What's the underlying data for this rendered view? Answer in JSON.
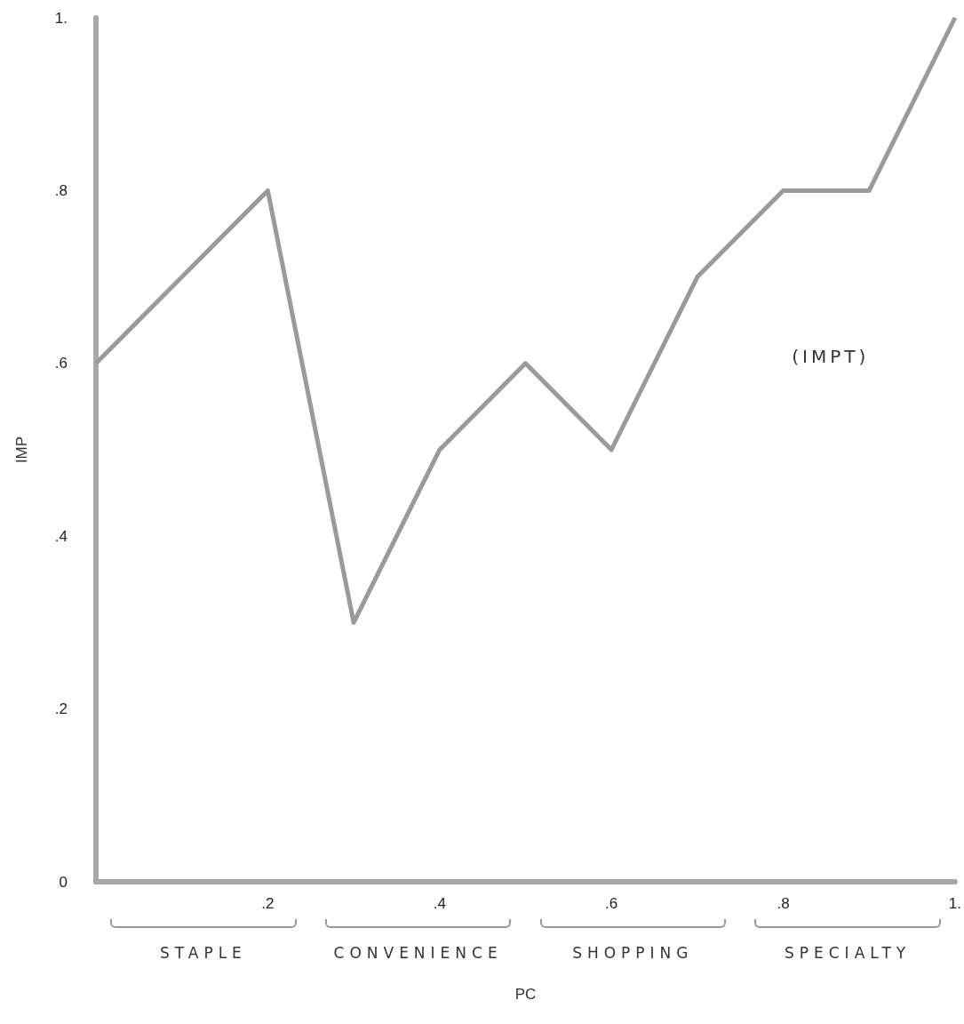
{
  "chart_data": {
    "type": "line",
    "xlabel": "PC",
    "ylabel": "IMP",
    "x": [
      0,
      0.2,
      0.3,
      0.4,
      0.5,
      0.6,
      0.7,
      0.8,
      0.9,
      1.0
    ],
    "series": [
      {
        "color": "#9a9a9a",
        "values": [
          0.6,
          0.8,
          0.3,
          0.5,
          0.6,
          0.5,
          0.7,
          0.8,
          0.8,
          1.0
        ]
      }
    ],
    "xlim": [
      0,
      1
    ],
    "ylim": [
      0,
      1
    ],
    "xticks": [
      {
        "value": 0,
        "label": null
      },
      {
        "value": 0.2,
        "label": ".2"
      },
      {
        "value": 0.4,
        "label": ".4"
      },
      {
        "value": 0.6,
        "label": ".6"
      },
      {
        "value": 0.8,
        "label": ".8"
      },
      {
        "value": 1,
        "label": "1."
      }
    ],
    "yticks": [
      0,
      {
        "value": 0.2,
        "label": ".2"
      },
      {
        "value": 0.4,
        "label": ".4"
      },
      {
        "value": 0.6,
        "label": ".6"
      },
      {
        "value": 0.8,
        "label": ".8"
      },
      {
        "value": 1,
        "label": "1."
      }
    ],
    "annotations": [
      "(IMPT)",
      "STAPLE",
      "CONVENIENCE",
      "SHOPPING",
      "SPECIALTY"
    ],
    "grid": false,
    "marker": "none",
    "line_style": "solid"
  }
}
